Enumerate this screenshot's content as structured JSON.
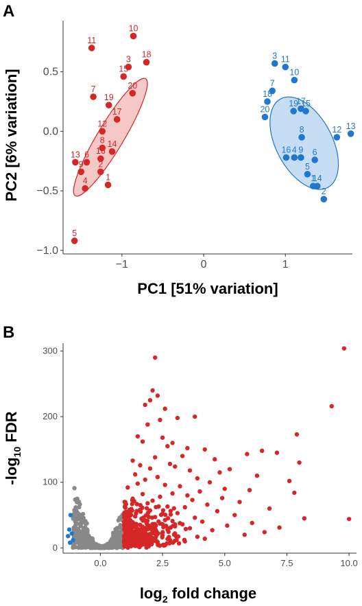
{
  "chart_data": [
    {
      "type": "scatter",
      "panel_label": "A",
      "xlabel": "PC1 [51% variation]",
      "ylabel": "PC2 [6% variation]",
      "xlim": [
        -1.72,
        1.82
      ],
      "ylim": [
        -1.03,
        0.93
      ],
      "x_ticks": [
        -1,
        0,
        1
      ],
      "x_tick_labels": [
        "−1",
        "0",
        "1"
      ],
      "y_ticks": [
        0.5,
        0.0,
        -0.5,
        -1.0
      ],
      "y_tick_labels": [
        "0.5",
        "0.0",
        "−0.5",
        "−1.0"
      ],
      "grid": false,
      "legend": "none",
      "series": [
        {
          "color": "#D62728",
          "ellipse_fill": "#F2B5B5",
          "ellipse": {
            "cx": -1.14,
            "cy": -0.05,
            "rx": 0.68,
            "ry": 0.13,
            "angle": 59
          },
          "points": [
            {
              "label": "1",
              "x": -1.17,
              "y": -0.45
            },
            {
              "label": "2",
              "x": -1.26,
              "y": -0.34
            },
            {
              "label": "3",
              "x": -0.92,
              "y": 0.54
            },
            {
              "label": "4",
              "x": -1.45,
              "y": -0.48
            },
            {
              "label": "5",
              "x": -1.58,
              "y": -0.92
            },
            {
              "label": "6",
              "x": -1.43,
              "y": -0.26
            },
            {
              "label": "7",
              "x": -1.35,
              "y": 0.29
            },
            {
              "label": "8",
              "x": -1.24,
              "y": -0.14
            },
            {
              "label": "9",
              "x": -1.5,
              "y": -0.34
            },
            {
              "label": "10",
              "x": -0.86,
              "y": 0.8
            },
            {
              "label": "11",
              "x": -1.37,
              "y": 0.7
            },
            {
              "label": "12",
              "x": -1.24,
              "y": 0.0
            },
            {
              "label": "13",
              "x": -1.57,
              "y": -0.26
            },
            {
              "label": "14",
              "x": -1.12,
              "y": -0.17
            },
            {
              "label": "15",
              "x": -0.98,
              "y": 0.46
            },
            {
              "label": "16",
              "x": -1.26,
              "y": -0.23
            },
            {
              "label": "17",
              "x": -1.06,
              "y": 0.1
            },
            {
              "label": "18",
              "x": -0.7,
              "y": 0.58
            },
            {
              "label": "19",
              "x": -1.16,
              "y": 0.22
            },
            {
              "label": "20",
              "x": -0.87,
              "y": 0.32
            }
          ]
        },
        {
          "color": "#1F77D0",
          "ellipse_fill": "#B3D1F0",
          "ellipse": {
            "cx": 1.23,
            "cy": -0.1,
            "rx": 0.5,
            "ry": 0.28,
            "angle": -62
          },
          "points": [
            {
              "label": "1",
              "x": 1.34,
              "y": -0.46
            },
            {
              "label": "2",
              "x": 1.47,
              "y": -0.57
            },
            {
              "label": "3",
              "x": 0.87,
              "y": 0.57
            },
            {
              "label": "4",
              "x": 1.11,
              "y": -0.22
            },
            {
              "label": "5",
              "x": 1.27,
              "y": -0.36
            },
            {
              "label": "6",
              "x": 1.36,
              "y": -0.24
            },
            {
              "label": "7",
              "x": 0.84,
              "y": 0.34
            },
            {
              "label": "8",
              "x": 1.2,
              "y": -0.05
            },
            {
              "label": "9",
              "x": 1.19,
              "y": -0.22
            },
            {
              "label": "10",
              "x": 1.11,
              "y": 0.43
            },
            {
              "label": "11",
              "x": 1.0,
              "y": 0.54
            },
            {
              "label": "12",
              "x": 1.63,
              "y": -0.05
            },
            {
              "label": "13",
              "x": 1.8,
              "y": -0.02
            },
            {
              "label": "14",
              "x": 1.39,
              "y": -0.46
            },
            {
              "label": "15",
              "x": 1.25,
              "y": 0.17
            },
            {
              "label": "16",
              "x": 1.01,
              "y": -0.22
            },
            {
              "label": "17",
              "x": 1.19,
              "y": 0.19
            },
            {
              "label": "18",
              "x": 0.78,
              "y": 0.25
            },
            {
              "label": "19",
              "x": 1.1,
              "y": 0.17
            },
            {
              "label": "20",
              "x": 0.75,
              "y": 0.12
            }
          ]
        }
      ]
    },
    {
      "type": "scatter",
      "panel_label": "B",
      "xlabel_main": "log",
      "xlabel_sub": "2",
      "xlabel_rest": " fold change",
      "ylabel_pre": "-log",
      "ylabel_sub": "10",
      "ylabel_rest": " FDR",
      "xlim": [
        -1.5,
        10.3
      ],
      "ylim": [
        -8,
        312
      ],
      "x_ticks": [
        0,
        2.5,
        5,
        7.5,
        10
      ],
      "x_tick_labels": [
        "0.0",
        "2.5",
        "5.0",
        "7.5",
        "10.0"
      ],
      "y_ticks": [
        0,
        100,
        200,
        300
      ],
      "y_tick_labels": [
        "0",
        "100",
        "200",
        "300"
      ],
      "grid": false,
      "legend": "none",
      "colors": {
        "not_significant": "#888888",
        "up": "#D62728",
        "down": "#1F77D0"
      },
      "up_points": [
        [
          9.8,
          304
        ],
        [
          2.2,
          290
        ],
        [
          2.1,
          240
        ],
        [
          2.3,
          232
        ],
        [
          2.0,
          225
        ],
        [
          1.8,
          218
        ],
        [
          2.6,
          212
        ],
        [
          9.3,
          216
        ],
        [
          3.8,
          200
        ],
        [
          3.1,
          198
        ],
        [
          2.4,
          195
        ],
        [
          1.9,
          188
        ],
        [
          7.9,
          173
        ],
        [
          1.5,
          170
        ],
        [
          2.5,
          168
        ],
        [
          1.7,
          162
        ],
        [
          2.9,
          160
        ],
        [
          2.7,
          155
        ],
        [
          3.5,
          152
        ],
        [
          4.2,
          150
        ],
        [
          6.5,
          148
        ],
        [
          7.1,
          145
        ],
        [
          5.9,
          143
        ],
        [
          3.3,
          140
        ],
        [
          2.2,
          138
        ],
        [
          4.6,
          135
        ],
        [
          1.3,
          133
        ],
        [
          8.0,
          130
        ],
        [
          2.8,
          128
        ],
        [
          1.6,
          126
        ],
        [
          3.0,
          124
        ],
        [
          2.0,
          121
        ],
        [
          5.2,
          120
        ],
        [
          3.6,
          118
        ],
        [
          4.8,
          115
        ],
        [
          1.4,
          112
        ],
        [
          6.3,
          110
        ],
        [
          2.3,
          108
        ],
        [
          3.9,
          106
        ],
        [
          1.8,
          104
        ],
        [
          7.6,
          102
        ],
        [
          4.4,
          100
        ],
        [
          1.5,
          98
        ],
        [
          2.6,
          96
        ],
        [
          3.2,
          94
        ],
        [
          1.1,
          92
        ],
        [
          5.0,
          90
        ],
        [
          6.0,
          88
        ],
        [
          4.0,
          86
        ],
        [
          7.8,
          84
        ],
        [
          2.9,
          83
        ],
        [
          1.7,
          82
        ],
        [
          3.5,
          80
        ],
        [
          2.4,
          78
        ],
        [
          4.9,
          76
        ],
        [
          1.3,
          75
        ],
        [
          3.7,
          73
        ],
        [
          2.1,
          72
        ],
        [
          5.6,
          70
        ],
        [
          1.9,
          68
        ],
        [
          4.3,
          66
        ],
        [
          1.0,
          65
        ],
        [
          2.7,
          63
        ],
        [
          3.4,
          62
        ],
        [
          6.8,
          60
        ],
        [
          1.6,
          58
        ],
        [
          2.0,
          57
        ],
        [
          4.7,
          56
        ],
        [
          1.2,
          55
        ],
        [
          3.1,
          53
        ],
        [
          2.5,
          52
        ],
        [
          5.4,
          50
        ],
        [
          1.4,
          48
        ],
        [
          2.2,
          47
        ],
        [
          3.8,
          46
        ],
        [
          8.2,
          45
        ],
        [
          10.0,
          44
        ],
        [
          1.1,
          44
        ],
        [
          1.8,
          42
        ],
        [
          2.9,
          41
        ],
        [
          4.1,
          40
        ],
        [
          1.3,
          39
        ],
        [
          6.1,
          38
        ],
        [
          2.4,
          37
        ],
        [
          3.3,
          36
        ],
        [
          1.6,
          35
        ],
        [
          5.1,
          34
        ],
        [
          2.0,
          33
        ],
        [
          1.0,
          32
        ],
        [
          7.2,
          31
        ],
        [
          3.6,
          30
        ],
        [
          1.5,
          29
        ],
        [
          2.7,
          28
        ],
        [
          4.5,
          27
        ],
        [
          1.2,
          26
        ],
        [
          2.2,
          25
        ],
        [
          6.6,
          24
        ],
        [
          1.8,
          23
        ],
        [
          3.0,
          22
        ],
        [
          1.4,
          21
        ],
        [
          5.8,
          20
        ],
        [
          2.5,
          19
        ],
        [
          1.1,
          18
        ],
        [
          3.9,
          17
        ],
        [
          1.7,
          16
        ],
        [
          2.1,
          15
        ],
        [
          4.2,
          14
        ],
        [
          1.3,
          13
        ],
        [
          2.8,
          12
        ],
        [
          1.0,
          11
        ],
        [
          3.4,
          10
        ],
        [
          1.5,
          9
        ],
        [
          2.3,
          8
        ],
        [
          1.2,
          7
        ],
        [
          1.9,
          6
        ],
        [
          1.0,
          5
        ],
        [
          2.6,
          4
        ],
        [
          1.4,
          3
        ],
        [
          1.1,
          2
        ]
      ],
      "down_points": [
        [
          -1.2,
          50
        ],
        [
          -1.25,
          28
        ],
        [
          -1.15,
          22
        ],
        [
          -1.3,
          18
        ],
        [
          -1.1,
          12
        ],
        [
          -1.22,
          8
        ]
      ]
    }
  ]
}
